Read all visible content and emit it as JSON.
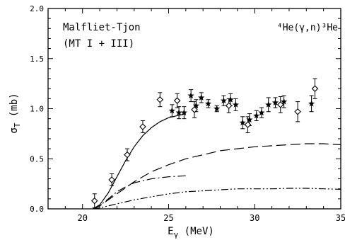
{
  "chart_data": {
    "type": "scatter",
    "annotation_left_1": "Malfliet-Tjon",
    "annotation_left_2": "(MT I + III)",
    "annotation_right": "⁴He(γ,n)³He",
    "xlabel": "E_γ (MeV)",
    "xlabel_main": "E",
    "xlabel_sub": "γ",
    "xlabel_unit": " (MeV)",
    "ylabel": "σ_T (mb)",
    "ylabel_main": "σ",
    "ylabel_sub": "T",
    "ylabel_unit": " (mb)",
    "xlim": [
      18,
      35
    ],
    "ylim": [
      0,
      2.0
    ],
    "x_ticks": [
      20,
      25,
      30,
      35
    ],
    "y_ticks": [
      0.0,
      0.5,
      1.0,
      1.5,
      2.0
    ],
    "y_tick_labels": [
      "0.0",
      "0.5",
      "1.0",
      "1.5",
      "2.0"
    ],
    "series": [
      {
        "style": "solid",
        "points": [
          [
            20.6,
            0.0
          ],
          [
            21.0,
            0.04
          ],
          [
            21.5,
            0.16
          ],
          [
            22.0,
            0.32
          ],
          [
            22.5,
            0.48
          ],
          [
            23.0,
            0.62
          ],
          [
            23.5,
            0.73
          ],
          [
            24.0,
            0.81
          ],
          [
            24.5,
            0.87
          ],
          [
            25.0,
            0.91
          ],
          [
            25.5,
            0.93
          ],
          [
            26.0,
            0.95
          ]
        ]
      },
      {
        "style": "long-dash",
        "points": [
          [
            20.6,
            0.0
          ],
          [
            21.0,
            0.03
          ],
          [
            21.5,
            0.09
          ],
          [
            22.0,
            0.15
          ],
          [
            22.5,
            0.21
          ],
          [
            23.0,
            0.27
          ],
          [
            24.0,
            0.37
          ],
          [
            25.0,
            0.44
          ],
          [
            26.0,
            0.5
          ],
          [
            27.0,
            0.54
          ],
          [
            28.0,
            0.58
          ],
          [
            29.0,
            0.6
          ],
          [
            30.0,
            0.62
          ],
          [
            31.0,
            0.63
          ],
          [
            32.0,
            0.64
          ],
          [
            33.0,
            0.65
          ],
          [
            34.0,
            0.65
          ],
          [
            35.0,
            0.64
          ]
        ]
      },
      {
        "style": "dash-dot",
        "points": [
          [
            20.6,
            0.0
          ],
          [
            21.0,
            0.03
          ],
          [
            21.5,
            0.1
          ],
          [
            22.0,
            0.17
          ],
          [
            22.5,
            0.22
          ],
          [
            23.0,
            0.26
          ],
          [
            23.5,
            0.28
          ],
          [
            24.0,
            0.3
          ],
          [
            24.5,
            0.31
          ],
          [
            25.0,
            0.32
          ],
          [
            25.5,
            0.325
          ],
          [
            26.0,
            0.33
          ]
        ]
      },
      {
        "style": "dash-dot-dot",
        "points": [
          [
            20.6,
            0.0
          ],
          [
            21.0,
            0.01
          ],
          [
            21.5,
            0.03
          ],
          [
            22.0,
            0.05
          ],
          [
            23.0,
            0.09
          ],
          [
            24.0,
            0.12
          ],
          [
            25.0,
            0.15
          ],
          [
            26.0,
            0.17
          ],
          [
            27.0,
            0.18
          ],
          [
            28.0,
            0.19
          ],
          [
            29.0,
            0.2
          ],
          [
            30.0,
            0.2
          ],
          [
            31.0,
            0.2
          ],
          [
            32.0,
            0.205
          ],
          [
            33.0,
            0.205
          ],
          [
            34.0,
            0.2
          ],
          [
            35.0,
            0.195
          ]
        ]
      }
    ],
    "data_open_diamonds": [
      {
        "x": 20.7,
        "y": 0.08,
        "err": 0.07
      },
      {
        "x": 21.7,
        "y": 0.29,
        "err": 0.06
      },
      {
        "x": 22.6,
        "y": 0.54,
        "err": 0.06
      },
      {
        "x": 23.5,
        "y": 0.82,
        "err": 0.06
      },
      {
        "x": 24.5,
        "y": 1.09,
        "err": 0.07
      },
      {
        "x": 25.5,
        "y": 1.08,
        "err": 0.07
      },
      {
        "x": 26.5,
        "y": 0.99,
        "err": 0.08
      },
      {
        "x": 28.5,
        "y": 1.03,
        "err": 0.07
      },
      {
        "x": 29.6,
        "y": 0.84,
        "err": 0.08
      },
      {
        "x": 31.5,
        "y": 1.04,
        "err": 0.08
      },
      {
        "x": 32.5,
        "y": 0.97,
        "err": 0.1
      },
      {
        "x": 33.5,
        "y": 1.2,
        "err": 0.1
      }
    ],
    "data_filled_stars": [
      {
        "x": 25.2,
        "y": 0.98,
        "err": 0.06
      },
      {
        "x": 25.6,
        "y": 0.96,
        "err": 0.06
      },
      {
        "x": 25.9,
        "y": 0.96,
        "err": 0.06
      },
      {
        "x": 26.3,
        "y": 1.13,
        "err": 0.06
      },
      {
        "x": 26.6,
        "y": 1.03,
        "err": 0.06
      },
      {
        "x": 26.9,
        "y": 1.11,
        "err": 0.05
      },
      {
        "x": 27.3,
        "y": 1.05,
        "err": 0.04
      },
      {
        "x": 27.8,
        "y": 1.0,
        "err": 0.03
      },
      {
        "x": 28.2,
        "y": 1.08,
        "err": 0.05
      },
      {
        "x": 28.6,
        "y": 1.09,
        "err": 0.06
      },
      {
        "x": 28.9,
        "y": 1.04,
        "err": 0.06
      },
      {
        "x": 29.3,
        "y": 0.86,
        "err": 0.06
      },
      {
        "x": 29.7,
        "y": 0.89,
        "err": 0.06
      },
      {
        "x": 30.1,
        "y": 0.93,
        "err": 0.05
      },
      {
        "x": 30.4,
        "y": 0.96,
        "err": 0.05
      },
      {
        "x": 30.8,
        "y": 1.04,
        "err": 0.07
      },
      {
        "x": 31.2,
        "y": 1.06,
        "err": 0.05
      },
      {
        "x": 31.7,
        "y": 1.07,
        "err": 0.06
      },
      {
        "x": 33.3,
        "y": 1.05,
        "err": 0.08
      }
    ]
  }
}
